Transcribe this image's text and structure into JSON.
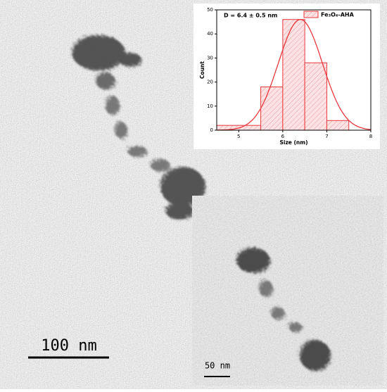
{
  "chart_data": {
    "type": "histogram",
    "annotation": "D = 6.4 ± 0.5 nm",
    "x_label": "Size (nm)",
    "y_label": "Count",
    "bins": [
      4.5,
      5.5,
      6,
      6.5,
      7,
      7.5
    ],
    "series": [
      {
        "name": "Fe₃O₄-AHA",
        "color": "#e8383d",
        "values": [
          2,
          18,
          46,
          28,
          4
        ]
      }
    ],
    "fit": {
      "mean": 6.4,
      "sd": 0.5,
      "amplitude": 46
    },
    "xlim": [
      4.5,
      8
    ],
    "xticks": [
      5,
      6,
      7,
      8
    ],
    "ylim": [
      0,
      50
    ],
    "yticks": [
      0,
      10,
      20,
      30,
      40,
      50
    ]
  },
  "scale_bar_main": "100 nm",
  "scale_bar_inset": "50 nm"
}
